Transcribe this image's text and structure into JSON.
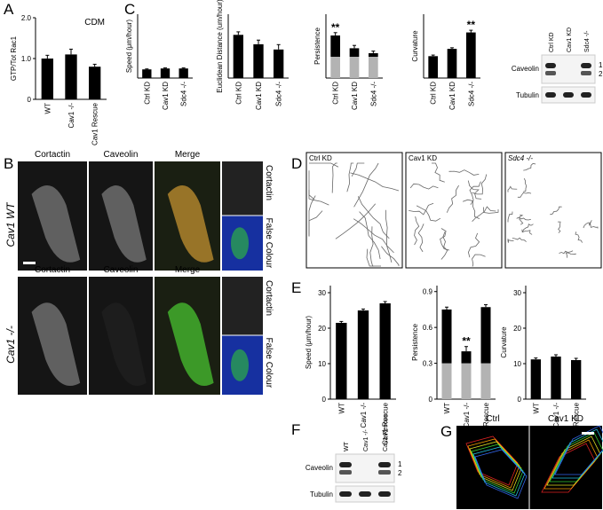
{
  "panel_labels": [
    "A",
    "B",
    "C",
    "D",
    "E",
    "F",
    "G"
  ],
  "chart_data": [
    {
      "type": "bar",
      "y_label": "GTP/Tot Rac1",
      "annotation": "CDM",
      "categories": [
        "WT",
        "Cav1 -/-",
        "Cav1 Rescue"
      ],
      "values": [
        1.0,
        1.1,
        0.8
      ],
      "errors": [
        0.08,
        0.13,
        0.06
      ],
      "color": "#000000",
      "ylim": [
        0,
        2
      ],
      "yticks": [
        0,
        {
          "value": 1,
          "label": "1.0"
        },
        {
          "value": 2,
          "label": "2.0"
        }
      ]
    },
    {
      "type": "bar",
      "y_label": "Speed (μm/hour)",
      "categories": [
        "Ctrl KD",
        "Cav1 KD",
        "Sdc4 -/-"
      ],
      "values": [
        19,
        21,
        21
      ],
      "errors": [
        1,
        1.2,
        1.2
      ],
      "color": "#000000",
      "ylim": [
        0,
        140
      ]
    },
    {
      "type": "bar",
      "y_label": "Euclidean Distance (um/hour)",
      "categories": [
        "Ctrl KD",
        "Cav1 KD",
        "Sdc4 -/-"
      ],
      "values": [
        11.5,
        9,
        7.6
      ],
      "errors": [
        0.8,
        1.1,
        1.3
      ],
      "color": "#000000",
      "ylim": [
        0,
        17
      ]
    },
    {
      "type": "stacked_bar",
      "y_label": "Persistence",
      "categories": [
        "Ctrl KD",
        "Cav1 KD",
        "Sdc4 -/-"
      ],
      "series": [
        {
          "color": "#b3b3b3",
          "values": [
            0.3,
            0.3,
            0.3
          ]
        },
        {
          "color": "#000000",
          "values": [
            0.3,
            0.12,
            0.05
          ]
        }
      ],
      "errors": [
        0.04,
        0.04,
        0.03
      ],
      "annotations": [
        {
          "text": "**",
          "x": "Ctrl KD"
        }
      ],
      "ylim": [
        0,
        0.9
      ]
    },
    {
      "type": "bar",
      "y_label": "Curvature",
      "categories": [
        "Ctrl KD",
        "Cav1 KD",
        "Sdc4 -/-"
      ],
      "values": [
        12,
        16,
        25
      ],
      "errors": [
        0.6,
        0.6,
        1.2
      ],
      "annotations": [
        {
          "text": "**",
          "x": "Sdc4 -/-"
        }
      ],
      "color": "#000000",
      "ylim": [
        0,
        35
      ]
    },
    {
      "type": "bar",
      "y_label": "Speed (μm/hour)",
      "categories": [
        "WT",
        "Cav1 -/-",
        "Cav1 Rescue"
      ],
      "values": [
        21.5,
        25,
        27
      ],
      "errors": [
        0.4,
        0.4,
        0.5
      ],
      "color": "#000000",
      "ylim": [
        0,
        32
      ],
      "yticks": [
        0,
        10,
        20,
        30
      ]
    },
    {
      "type": "stacked_bar",
      "y_label": "Persistence",
      "categories": [
        "WT",
        "Cav1 -/-",
        "Cav1 Rescue"
      ],
      "series": [
        {
          "color": "#b3b3b3",
          "values": [
            0.3,
            0.3,
            0.3
          ]
        },
        {
          "color": "#000000",
          "values": [
            0.45,
            0.1,
            0.47
          ]
        }
      ],
      "errors": [
        0.02,
        0.04,
        0.02
      ],
      "annotations": [
        {
          "text": "**",
          "x": "Cav1 -/-"
        }
      ],
      "ylim": [
        0,
        0.95
      ],
      "yticks": [
        0,
        0.3,
        0.6,
        0.9
      ]
    },
    {
      "type": "bar",
      "y_label": "Curvature",
      "categories": [
        "WT",
        "Cav1 -/-",
        "Cav1 Rescue"
      ],
      "values": [
        11.2,
        12,
        11
      ],
      "errors": [
        0.4,
        0.5,
        0.5
      ],
      "color": "#000000",
      "ylim": [
        0,
        32
      ],
      "yticks": [
        0,
        10,
        20,
        30
      ]
    }
  ],
  "panel_b": {
    "columns": [
      "Cortactin",
      "Caveolin",
      "Merge"
    ],
    "rows": [
      "Cav1 WT",
      "Cav1 -/-"
    ],
    "insets": [
      "Cortactin",
      "False Colour"
    ]
  },
  "panel_d": {
    "tracks": [
      "Ctrl KD",
      "Cav1 KD",
      "Sdc4 -/-"
    ]
  },
  "blot_c": {
    "lanes": [
      "Ctrl KD",
      "Cav1 KD",
      "Sdc4 -/-"
    ],
    "rows": [
      "Caveolin",
      "Tubulin"
    ],
    "bands": [
      "1",
      "2"
    ]
  },
  "blot_f": {
    "lanes": [
      "WT",
      "Cav1 -/-",
      "Cav1 Rescue"
    ],
    "rows": [
      "Caveolin",
      "Tubulin"
    ],
    "bands": [
      "1",
      "2"
    ]
  },
  "panel_g": {
    "titles": [
      "Ctrl",
      "Cav1 KD"
    ]
  }
}
